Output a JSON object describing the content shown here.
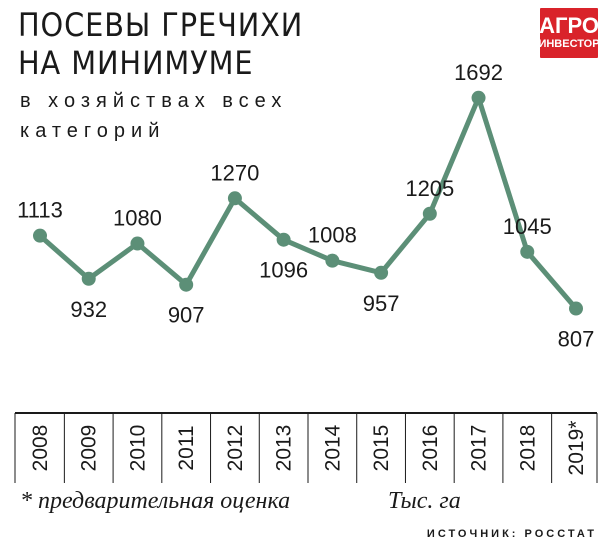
{
  "header": {
    "title_lines": [
      "ПОСЕВЫ ГРЕЧИХИ",
      "НА МИНИМУМЕ"
    ],
    "subtitle_lines": [
      "в хозяйствах всех",
      "категорий"
    ]
  },
  "logo": {
    "line1": "АГРО",
    "line2": "ИНВЕСТОР",
    "color": "#d9232a"
  },
  "footer": {
    "footnote": "* предварительная оценка",
    "unit": "Тыс. га",
    "source": "ИСТОЧНИК: РОССТАТ"
  },
  "colors": {
    "line": "#5c8f77",
    "axis": "#1a1a1a",
    "text": "#1a1a1a"
  },
  "chart_data": {
    "type": "line",
    "categories": [
      "2008",
      "2009",
      "2010",
      "2011",
      "2012",
      "2013",
      "2014",
      "2015",
      "2016",
      "2017",
      "2018",
      "2019*"
    ],
    "values": [
      1113,
      932,
      1080,
      907,
      1270,
      1096,
      1008,
      957,
      1205,
      1692,
      1045,
      807
    ],
    "data_labels": [
      "1113",
      "932",
      "1080",
      "907",
      "1270",
      "1096",
      "1008",
      "957",
      "1205",
      "1692",
      "1045",
      "807"
    ],
    "label_positions": [
      "above",
      "below",
      "above",
      "below",
      "above",
      "below",
      "above",
      "below",
      "above",
      "above",
      "above",
      "below"
    ],
    "ylim": [
      700,
      1750
    ],
    "grid": false,
    "title": "ПОСЕВЫ ГРЕЧИХИ НА МИНИМУМЕ",
    "xlabel": "",
    "ylabel": ""
  }
}
